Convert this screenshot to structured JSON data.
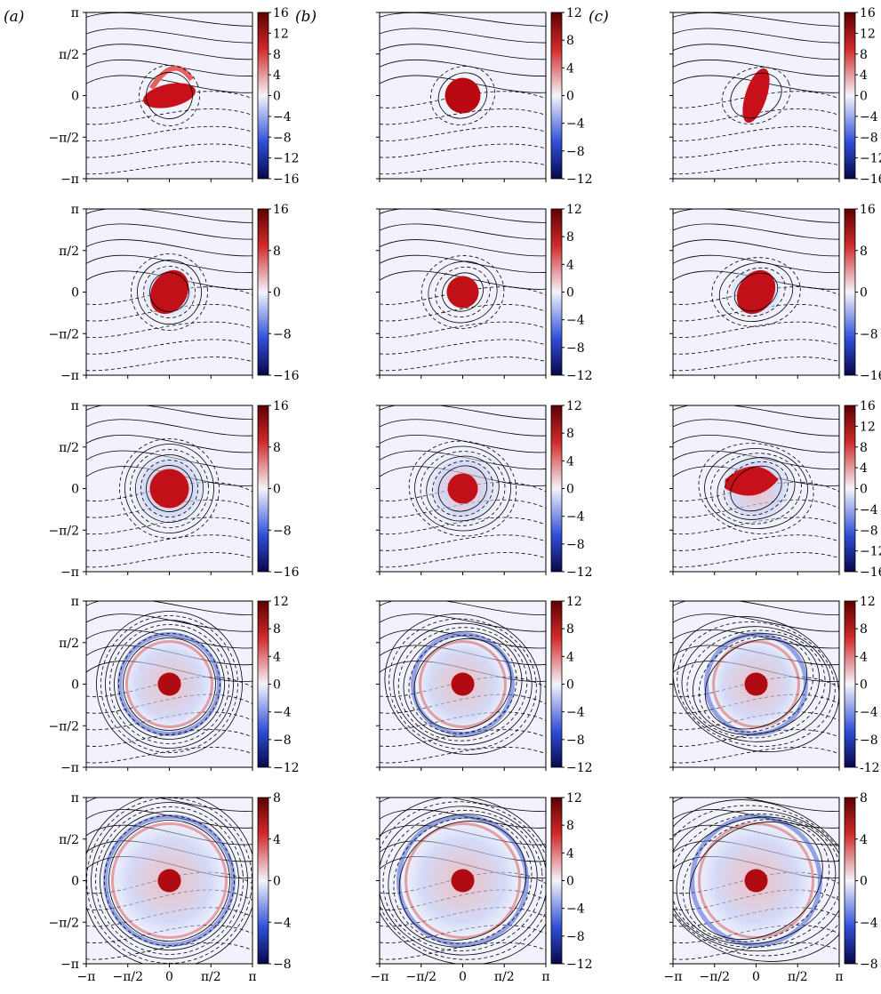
{
  "figure": {
    "column_labels": [
      "(a)",
      "(b)",
      "(c)"
    ],
    "y_tick_labels": [
      "π",
      "π/2",
      "0",
      "−π/2",
      "−π"
    ],
    "x_tick_labels": [
      "−π",
      "−π/2",
      "0",
      "π/2",
      "π"
    ],
    "colorbar_ticks": [
      [
        [
          "16",
          "12",
          "8",
          "4",
          "0",
          "−4",
          "−8",
          "−12",
          "−16"
        ],
        [
          "12",
          "8",
          "4",
          "0",
          "−4",
          "−8",
          "−12"
        ],
        [
          "16",
          "12",
          "8",
          "4",
          "0",
          "−4",
          "−8",
          "−12",
          "−16"
        ]
      ],
      [
        [
          "16",
          "8",
          "0",
          "−8",
          "−16"
        ],
        [
          "12",
          "8",
          "4",
          "0",
          "−4",
          "−8",
          "−12"
        ],
        [
          "16",
          "8",
          "0",
          "−8",
          "−16"
        ]
      ],
      [
        [
          "16",
          "8",
          "0",
          "−8",
          "−16"
        ],
        [
          "12",
          "8",
          "4",
          "0",
          "−4",
          "−8",
          "−12"
        ],
        [
          "16",
          "12",
          "8",
          "4",
          "0",
          "−4",
          "−8",
          "−12",
          "−16"
        ]
      ],
      [
        [
          "12",
          "8",
          "4",
          "0",
          "−4",
          "−8",
          "−12"
        ],
        [
          "12",
          "8",
          "4",
          "0",
          "−4",
          "−8",
          "−12"
        ],
        [
          "12",
          "8",
          "4",
          "0",
          "−4",
          "−8",
          "-12"
        ]
      ],
      [
        [
          "8",
          "4",
          "0",
          "−4",
          "−8"
        ],
        [
          "12",
          "8",
          "4",
          "0",
          "−4",
          "−8",
          "−12"
        ],
        [
          "8",
          "4",
          "0",
          "−4",
          "−8"
        ]
      ]
    ],
    "colormap": {
      "min_color": "#08084a",
      "low_color": "#2f4fd8",
      "mid_color": "#f4f4fb",
      "high_color": "#d12a2a",
      "max_color": "#5e0000"
    },
    "vortex_stage": [
      [
        "tilted-ellipse",
        "round-core",
        "vertical-ellipse"
      ],
      [
        "filamenting",
        "round-core",
        "filamenting"
      ],
      [
        "rolled-up",
        "ringed-core",
        "s-shaped"
      ],
      [
        "turbulent-ring",
        "smooth-ring",
        "turbulent-spiral"
      ],
      [
        "broad-turbulent",
        "broad-smooth",
        "broad-turbulent"
      ]
    ]
  }
}
